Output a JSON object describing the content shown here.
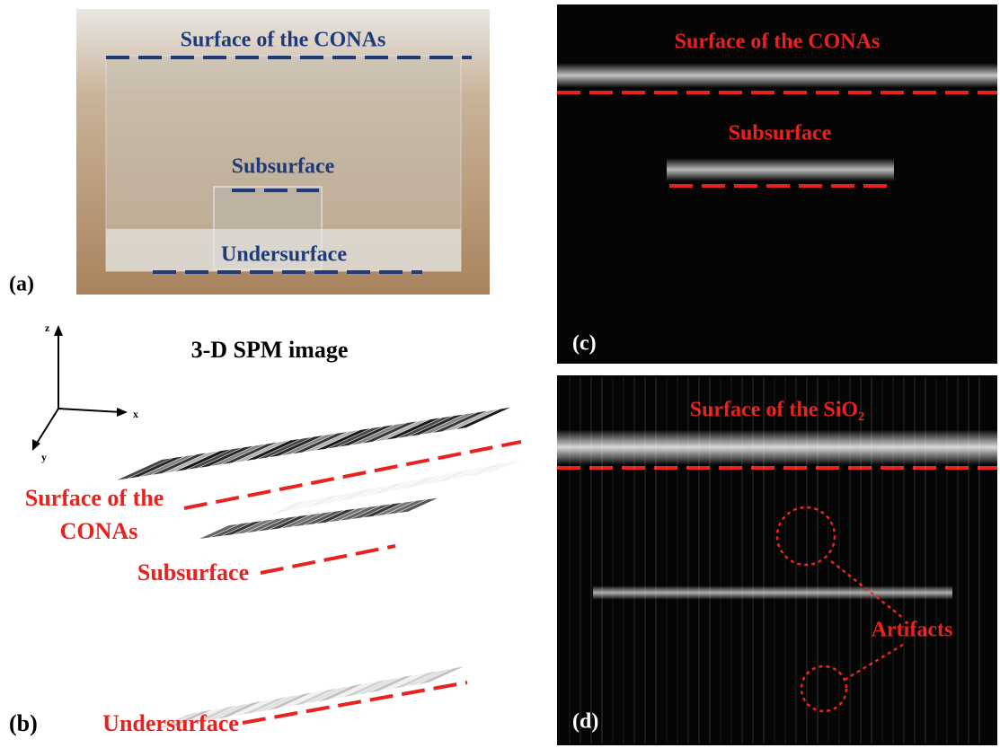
{
  "panel_a": {
    "label": "(a)",
    "surface": "Surface of the CONAs",
    "subsurface": "Subsurface",
    "undersurface": "Undersurface"
  },
  "panel_b": {
    "label": "(b)",
    "title": "3-D SPM image",
    "axis_z": "z",
    "axis_x": "x",
    "axis_y": "y",
    "surface_line1": "Surface of the",
    "surface_line2": "CONAs",
    "subsurface": "Subsurface",
    "undersurface": "Undersurface"
  },
  "panel_c": {
    "label": "(c)",
    "surface": "Surface of the CONAs",
    "subsurface": "Subsurface"
  },
  "panel_d": {
    "label": "(d)",
    "surface": "Surface of the SiO₂",
    "artifacts": "Artifacts"
  }
}
